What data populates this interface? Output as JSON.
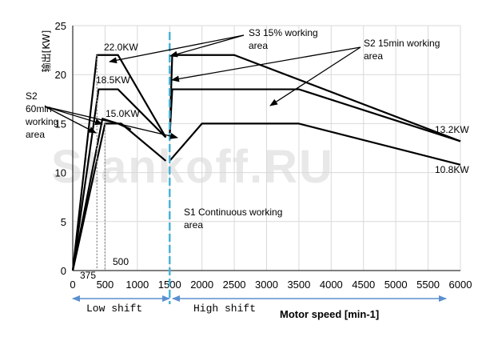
{
  "chart_data": {
    "type": "line",
    "title": "",
    "xlabel": "Motor speed [min-1]",
    "ylabel": "输出[KW]",
    "xlim": [
      0,
      6000
    ],
    "ylim": [
      0,
      25
    ],
    "x_ticks": [
      0,
      500,
      1000,
      1500,
      2000,
      2500,
      3000,
      3500,
      4000,
      4500,
      5000,
      5500,
      6000
    ],
    "y_ticks": [
      0,
      5,
      10,
      15,
      20,
      25
    ],
    "grid": true,
    "series": [
      {
        "name": "S3 15% working area",
        "low": [
          [
            0,
            0
          ],
          [
            375,
            22
          ],
          [
            700,
            22
          ],
          [
            1440,
            13.6
          ]
        ],
        "high": [
          [
            1500,
            13.6
          ],
          [
            1540,
            22
          ],
          [
            2500,
            22
          ],
          [
            6000,
            13.2
          ]
        ]
      },
      {
        "name": "S2 15min working area",
        "low": [
          [
            0,
            0
          ],
          [
            400,
            18.5
          ],
          [
            700,
            18.5
          ],
          [
            1440,
            13.6
          ]
        ],
        "high": [
          [
            1500,
            13.6
          ],
          [
            1540,
            18.5
          ],
          [
            3500,
            18.5
          ],
          [
            6000,
            13.2
          ]
        ]
      },
      {
        "name": "S1 Continuous working area",
        "low": [
          [
            0,
            0
          ],
          [
            500,
            15
          ],
          [
            750,
            15
          ],
          [
            1440,
            11.2
          ]
        ],
        "high": [
          [
            1500,
            11.2
          ],
          [
            2000,
            15
          ],
          [
            3500,
            15
          ],
          [
            6000,
            10.8
          ]
        ]
      },
      {
        "name": "S2 60min working area",
        "low": [
          [
            0,
            0
          ],
          [
            460,
            15.5
          ],
          [
            700,
            15
          ],
          [
            900,
            14.4
          ]
        ],
        "high": []
      }
    ],
    "value_labels": {
      "k22": "22.0KW",
      "k185": "18.5KW",
      "k15": "15.0KW",
      "k132": "13.2KW",
      "k108": "10.8KW"
    },
    "speed_markers": {
      "s375": "375",
      "s500": "500"
    },
    "annotations": {
      "s3": "S3 15% working area",
      "s2_15": "S2 15min working area",
      "s2_60": "S2 60min working area",
      "s1": "S1 Continuous working area"
    },
    "shift": {
      "low": "Low shift",
      "high": "High shift",
      "boundary_rpm": 1500
    },
    "watermark": "Stankoff.RU",
    "colors": {
      "curve": "#000000",
      "grid": "#d9d9d9",
      "shift_line": "#4ab3d6",
      "shift_arrow": "#5b8fcf",
      "dotted": "#8c8c8c"
    }
  }
}
